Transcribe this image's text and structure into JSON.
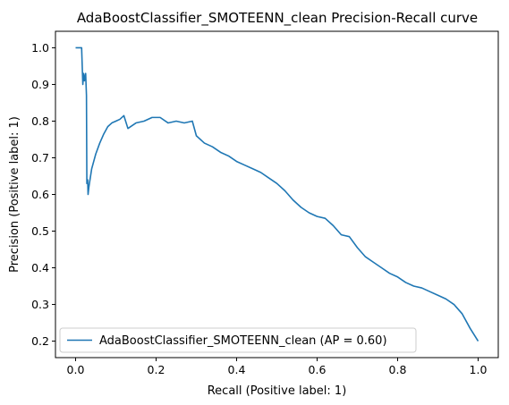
{
  "chart_data": {
    "type": "line",
    "title": "AdaBoostClassifier_SMOTEENN_clean Precision-Recall curve",
    "xlabel": "Recall (Positive label: 1)",
    "ylabel": "Precision (Positive label: 1)",
    "xlim": [
      -0.05,
      1.05
    ],
    "ylim": [
      0.155,
      1.045
    ],
    "xticks": [
      0.0,
      0.2,
      0.4,
      0.6,
      0.8,
      1.0
    ],
    "xtick_labels": [
      "0.0",
      "0.2",
      "0.4",
      "0.6",
      "0.8",
      "1.0"
    ],
    "yticks": [
      0.2,
      0.3,
      0.4,
      0.5,
      0.6,
      0.7,
      0.8,
      0.9,
      1.0
    ],
    "ytick_labels": [
      "0.2",
      "0.3",
      "0.4",
      "0.5",
      "0.6",
      "0.7",
      "0.8",
      "0.9",
      "1.0"
    ],
    "grid": false,
    "legend_position": "lower-left",
    "series": [
      {
        "name": "AdaBoostClassifier_SMOTEENN_clean (AP = 0.60)",
        "color": "#1f77b4",
        "x": [
          0.0,
          0.015,
          0.018,
          0.02,
          0.022,
          0.025,
          0.027,
          0.028,
          0.03,
          0.031,
          0.033,
          0.04,
          0.05,
          0.06,
          0.07,
          0.08,
          0.09,
          0.1,
          0.11,
          0.12,
          0.13,
          0.15,
          0.17,
          0.19,
          0.21,
          0.23,
          0.25,
          0.27,
          0.29,
          0.3,
          0.32,
          0.34,
          0.36,
          0.38,
          0.4,
          0.42,
          0.44,
          0.46,
          0.48,
          0.5,
          0.52,
          0.54,
          0.56,
          0.58,
          0.6,
          0.62,
          0.64,
          0.66,
          0.68,
          0.7,
          0.72,
          0.74,
          0.76,
          0.78,
          0.8,
          0.82,
          0.84,
          0.86,
          0.88,
          0.9,
          0.92,
          0.94,
          0.96,
          0.98,
          1.0
        ],
        "y": [
          1.0,
          1.0,
          0.9,
          0.93,
          0.91,
          0.93,
          0.87,
          0.63,
          0.64,
          0.6,
          0.62,
          0.67,
          0.71,
          0.74,
          0.765,
          0.785,
          0.795,
          0.8,
          0.805,
          0.815,
          0.78,
          0.795,
          0.8,
          0.81,
          0.81,
          0.795,
          0.8,
          0.795,
          0.8,
          0.76,
          0.74,
          0.73,
          0.715,
          0.705,
          0.69,
          0.68,
          0.67,
          0.66,
          0.645,
          0.63,
          0.61,
          0.585,
          0.565,
          0.55,
          0.54,
          0.535,
          0.515,
          0.49,
          0.485,
          0.455,
          0.43,
          0.415,
          0.4,
          0.385,
          0.375,
          0.36,
          0.35,
          0.345,
          0.335,
          0.325,
          0.315,
          0.3,
          0.275,
          0.235,
          0.2
        ]
      }
    ]
  }
}
